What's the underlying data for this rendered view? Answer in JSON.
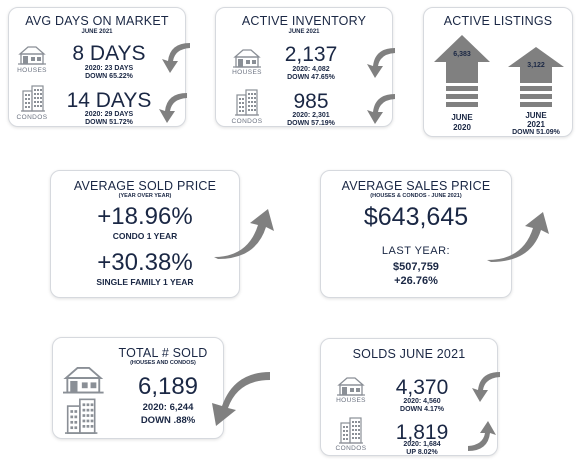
{
  "avg_days": {
    "title": "AVG DAYS ON MARKET",
    "subtitle": "JUNE 2021",
    "houses_label": "HOUSES",
    "houses_value": "8 DAYS",
    "houses_prev": "2020: 23 DAYS",
    "houses_change": "DOWN 65.22%",
    "condos_label": "CONDOS",
    "condos_value": "14 DAYS",
    "condos_prev": "2020: 29 DAYS",
    "condos_change": "DOWN 51.72%"
  },
  "active_inventory": {
    "title": "ACTIVE INVENTORY",
    "subtitle": "JUNE 2021",
    "houses_label": "HOUSES",
    "houses_value": "2,137",
    "houses_prev": "2020: 4,082",
    "houses_change": "DOWN 47.65%",
    "condos_label": "CONDOS",
    "condos_value": "985",
    "condos_prev": "2020: 2,301",
    "condos_change": "DOWN 57.19%"
  },
  "active_listings": {
    "title": "ACTIVE LISTINGS",
    "value_2020": "6,383",
    "label_2020_line1": "JUNE",
    "label_2020_line2": "2020",
    "value_2021": "3,122",
    "label_2021_line1": "JUNE",
    "label_2021_line2": "2021",
    "change": "DOWN 51.09%"
  },
  "avg_sold_price": {
    "title": "AVERAGE SOLD PRICE",
    "subtitle": "(YEAR OVER YEAR)",
    "condo_value": "+18.96%",
    "condo_label": "CONDO 1 YEAR",
    "single_value": "+30.38%",
    "single_label": "SINGLE FAMILY 1 YEAR"
  },
  "avg_sales_price": {
    "title": "AVERAGE SALES PRICE",
    "subtitle": "(HOUSES & CONDOS - JUNE 2021)",
    "value": "$643,645",
    "last_year_label": "LAST YEAR:",
    "last_year_value": "$507,759",
    "change": "+26.76%"
  },
  "total_sold": {
    "title": "TOTAL # SOLD",
    "subtitle": "(HOUSES AND CONDOS)",
    "value": "6,189",
    "prev": "2020: 6,244",
    "change": "DOWN .88%"
  },
  "solds_june": {
    "title": "SOLDS JUNE 2021",
    "houses_label": "HOUSES",
    "houses_value": "4,370",
    "houses_prev": "2020: 4,560",
    "houses_change": "DOWN 4.17%",
    "condos_label": "CONDOS",
    "condos_value": "1,819",
    "condos_prev": "2020: 1,684",
    "condos_change": "UP 8.02%"
  },
  "colors": {
    "navy": "#1a2744",
    "icon_gray": "#8a8f96",
    "arrow_gray": "#808080",
    "card_border": "#d6d9de"
  },
  "icons": [
    "house-icon",
    "condo-building-icon",
    "curved-arrow-down-icon",
    "curved-arrow-up-icon",
    "block-arrow-up-icon"
  ]
}
